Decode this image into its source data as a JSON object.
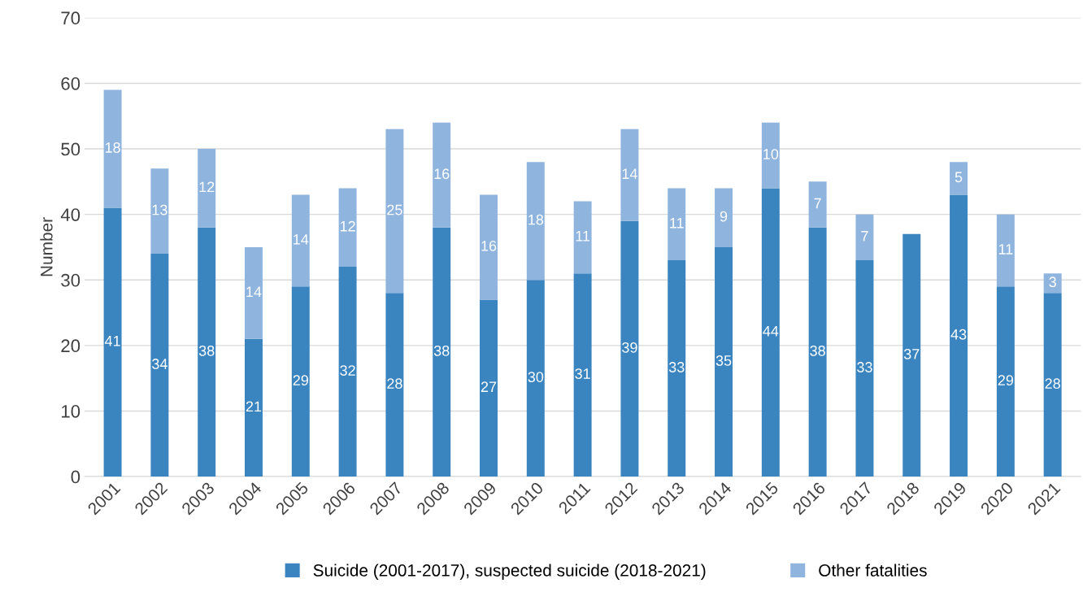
{
  "chart_data": {
    "type": "bar",
    "stacked": true,
    "ylabel": "Number",
    "categories": [
      "2001",
      "2002",
      "2003",
      "2004",
      "2005",
      "2006",
      "2007",
      "2008",
      "2009",
      "2010",
      "2011",
      "2012",
      "2013",
      "2014",
      "2015",
      "2016",
      "2017",
      "2018",
      "2019",
      "2020",
      "2021"
    ],
    "series": [
      {
        "name": "Suicide (2001-2017), suspected suicide (2018-2021)",
        "color": "#3a84c0",
        "values": [
          41,
          34,
          38,
          21,
          29,
          32,
          28,
          38,
          27,
          30,
          31,
          39,
          33,
          35,
          44,
          38,
          33,
          37,
          43,
          29,
          28
        ]
      },
      {
        "name": "Other fatalities",
        "color": "#8fb4de",
        "values": [
          18,
          13,
          12,
          14,
          14,
          12,
          25,
          16,
          16,
          18,
          11,
          14,
          11,
          9,
          10,
          7,
          7,
          null,
          5,
          11,
          3
        ]
      }
    ],
    "ylim": [
      0,
      70
    ],
    "yticks": [
      0,
      10,
      20,
      30,
      40,
      50,
      60,
      70
    ],
    "grid": "y",
    "legend": "bottom",
    "data_labels": true
  }
}
